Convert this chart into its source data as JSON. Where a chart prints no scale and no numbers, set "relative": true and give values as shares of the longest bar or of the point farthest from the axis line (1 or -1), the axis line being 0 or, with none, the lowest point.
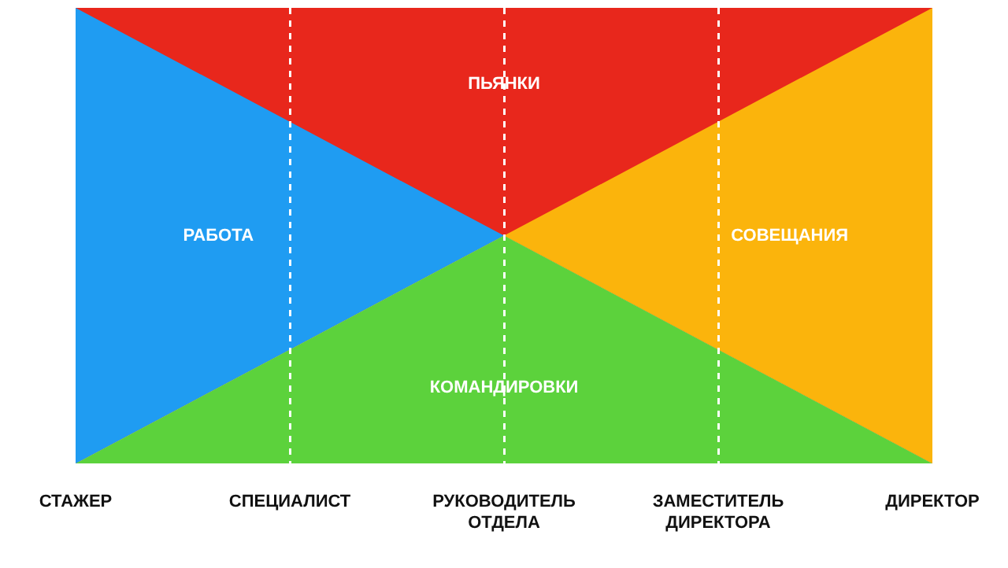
{
  "chart_data": {
    "type": "area",
    "stacked": true,
    "relative": true,
    "grid": "x",
    "categories": [
      "СТАЖЕР",
      "СПЕЦИАЛИСТ",
      "РУКОВОДИТЕЛЬ ОТДЕЛА",
      "ЗАМЕСТИТЕЛЬ ДИРЕКТОРА",
      "ДИРЕКТОР"
    ],
    "series": [
      {
        "name": "КОМАНДИРОВКИ",
        "color": "#5cd23c",
        "values": [
          0,
          0.25,
          0.5,
          0.25,
          0
        ]
      },
      {
        "name": "РАБОТА",
        "color": "#1f9cf2",
        "values": [
          1,
          0.5,
          0,
          null,
          null
        ]
      },
      {
        "name": "СОВЕЩАНИЯ",
        "color": "#fbb40c",
        "values": [
          null,
          null,
          0,
          0.5,
          1
        ]
      },
      {
        "name": "ПЬЯНКИ",
        "color": "#e8271c",
        "values": [
          0,
          0.25,
          0.5,
          0.25,
          0
        ]
      }
    ]
  }
}
